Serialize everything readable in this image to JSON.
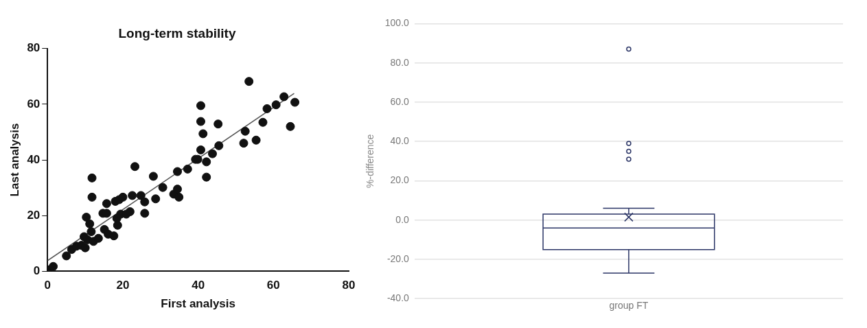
{
  "chart_data": [
    {
      "type": "scatter",
      "title": "Long-term stability",
      "xlabel": "First analysis",
      "ylabel": "Last analysis",
      "xlim": [
        0,
        80
      ],
      "ylim": [
        0,
        80
      ],
      "xticks": [
        0,
        20,
        40,
        60,
        80
      ],
      "yticks": [
        0,
        20,
        40,
        60,
        80
      ],
      "grid": false,
      "legend": false,
      "marker": "circle",
      "series": [
        {
          "type": "scatter",
          "color": "#111111",
          "x": [
            0,
            1.5,
            5,
            6.4,
            7.7,
            9,
            10,
            9.7,
            10.6,
            10.3,
            11.2,
            11.6,
            12.2,
            13.5,
            11.8,
            11.8,
            15.1,
            16.1,
            17.6,
            14.7,
            15.7,
            15.7,
            18,
            19,
            20,
            18.6,
            18.4,
            19.4,
            20.9,
            21.9,
            22.5,
            23.2,
            24.8,
            25.8,
            25.8,
            28.1,
            28.7,
            30.6,
            33.5,
            34.9,
            34.5,
            34.5,
            37.2,
            39.3,
            39.9,
            40.7,
            41.3,
            40.7,
            40.7,
            42.2,
            42.2,
            43.8,
            45.5,
            45.3,
            52.1,
            52.5,
            53.5,
            55.4,
            57.2,
            58.3,
            60.7,
            62.8,
            65.7,
            64.5
          ],
          "values": [
            0.5,
            1.7,
            5.5,
            7.8,
            9,
            9.3,
            8.4,
            12.4,
            11.3,
            19.4,
            17,
            14.2,
            10.7,
            11.8,
            33.5,
            26.6,
            15,
            13.3,
            12.7,
            20.8,
            20.8,
            24.3,
            25.1,
            25.7,
            26.6,
            16.5,
            19,
            20.5,
            20.5,
            21.4,
            27.2,
            37.6,
            27.2,
            24.9,
            20.8,
            34.1,
            26,
            30.1,
            27.7,
            26.6,
            29.5,
            35.8,
            36.7,
            40.2,
            40.2,
            43.6,
            49.4,
            53.8,
            59.5,
            39.3,
            33.8,
            42.2,
            45.1,
            52.9,
            46,
            50.3,
            68.2,
            47.1,
            53.5,
            58.4,
            59.8,
            62.7,
            60.7,
            52
          ]
        },
        {
          "type": "line",
          "color": "#555555",
          "marker": "none",
          "line_style": "solid",
          "x": [
            0,
            65.5
          ],
          "values": [
            3.8,
            63.9
          ]
        }
      ]
    },
    {
      "type": "box",
      "ylabel": "%-difference",
      "categories": [
        "group FT"
      ],
      "ylim": [
        -40,
        100
      ],
      "yticks": [
        {
          "value": -40,
          "label": "-40.0"
        },
        {
          "value": -20,
          "label": "-20.0"
        },
        {
          "value": 0,
          "label": "0.0"
        },
        {
          "value": 20,
          "label": "20.0"
        },
        {
          "value": 40,
          "label": "40.0"
        },
        {
          "value": 60,
          "label": "60.0"
        },
        {
          "value": 80,
          "label": "80.0"
        },
        {
          "value": 100,
          "label": "100.0"
        }
      ],
      "grid": "y",
      "legend": false,
      "series": [
        {
          "color": "#2b3566",
          "boxes": [
            {
              "low": -27,
              "q1": -15,
              "median": -4,
              "q3": 3,
              "high": 6,
              "mean": 1.5,
              "outliers": [
                87,
                39,
                35,
                31
              ]
            }
          ]
        }
      ]
    }
  ]
}
